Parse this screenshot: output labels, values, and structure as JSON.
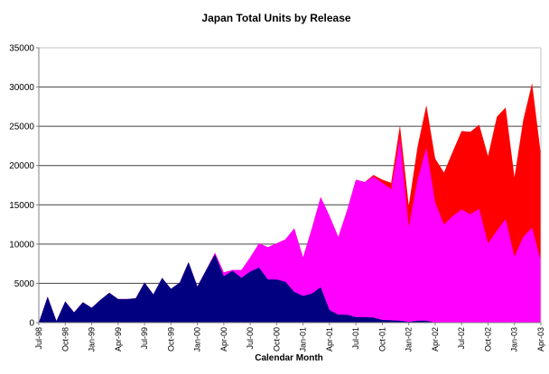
{
  "chart_data": {
    "type": "area",
    "stacked": true,
    "title": "Japan Total Units by Release",
    "xlabel": "Calendar Month",
    "ylabel": "",
    "ylim": [
      0,
      35000
    ],
    "yticks": [
      0,
      5000,
      10000,
      15000,
      20000,
      25000,
      30000,
      35000
    ],
    "grid": true,
    "legend": "none",
    "categories": [
      "Jul-98",
      "Aug-98",
      "Sep-98",
      "Oct-98",
      "Nov-98",
      "Dec-98",
      "Jan-99",
      "Feb-99",
      "Mar-99",
      "Apr-99",
      "May-99",
      "Jun-99",
      "Jul-99",
      "Aug-99",
      "Sep-99",
      "Oct-99",
      "Nov-99",
      "Dec-99",
      "Jan-00",
      "Feb-00",
      "Mar-00",
      "Apr-00",
      "May-00",
      "Jun-00",
      "Jul-00",
      "Aug-00",
      "Sep-00",
      "Oct-00",
      "Nov-00",
      "Dec-00",
      "Jan-01",
      "Feb-01",
      "Mar-01",
      "Apr-01",
      "May-01",
      "Jun-01",
      "Jul-01",
      "Aug-01",
      "Sep-01",
      "Oct-01",
      "Nov-01",
      "Dec-01",
      "Jan-02",
      "Feb-02",
      "Mar-02",
      "Apr-02",
      "May-02",
      "Jun-02",
      "Jul-02",
      "Aug-02",
      "Sep-02",
      "Oct-02",
      "Nov-02",
      "Dec-02",
      "Jan-03",
      "Feb-03",
      "Mar-03",
      "Apr-03"
    ],
    "tick_labels": [
      "Jul-98",
      "Oct-98",
      "Jan-99",
      "Apr-99",
      "Jul-99",
      "Oct-99",
      "Jan-00",
      "Apr-00",
      "Jul-00",
      "Oct-00",
      "Jan-01",
      "Apr-01",
      "Jul-01",
      "Oct-01",
      "Jan-02",
      "Apr-02",
      "Jul-02",
      "Oct-02",
      "Jan-03",
      "Apr-03"
    ],
    "series": [
      {
        "color": "#000080",
        "values": [
          0,
          3300,
          200,
          2700,
          1300,
          2600,
          1900,
          2900,
          3800,
          3000,
          3000,
          3100,
          5100,
          3600,
          5700,
          4300,
          5100,
          7700,
          4600,
          6700,
          8700,
          5900,
          6600,
          5700,
          6500,
          7000,
          5500,
          5500,
          5200,
          3900,
          3400,
          3700,
          4500,
          1600,
          1000,
          1000,
          700,
          700,
          650,
          350,
          300,
          250,
          100,
          250,
          250,
          0,
          0,
          0,
          0,
          0,
          0,
          0,
          0,
          0,
          0,
          0,
          0,
          0
        ]
      },
      {
        "color": "#FF00FF",
        "values": [
          0,
          0,
          0,
          0,
          0,
          0,
          0,
          0,
          0,
          0,
          0,
          0,
          0,
          0,
          0,
          0,
          0,
          0,
          0,
          0,
          200,
          500,
          100,
          1000,
          1800,
          3100,
          4100,
          4600,
          5400,
          8100,
          4900,
          8300,
          11500,
          12000,
          9900,
          13300,
          17500,
          17200,
          17950,
          17450,
          16700,
          23250,
          12100,
          17950,
          22050,
          15300,
          12500,
          13600,
          14400,
          13800,
          14500,
          10100,
          11700,
          13200,
          8400,
          10900,
          12100,
          7800
        ]
      },
      {
        "color": "#FF0000",
        "values": [
          0,
          0,
          0,
          0,
          0,
          0,
          0,
          0,
          0,
          0,
          0,
          0,
          0,
          0,
          0,
          0,
          0,
          0,
          0,
          0,
          0,
          0,
          0,
          0,
          0,
          0,
          0,
          0,
          0,
          0,
          0,
          0,
          0,
          0,
          0,
          0,
          0,
          0,
          200,
          400,
          800,
          1600,
          2700,
          4200,
          5400,
          5600,
          6600,
          8200,
          10000,
          10500,
          10700,
          11100,
          14500,
          14200,
          10100,
          14900,
          18400,
          13600
        ]
      }
    ]
  }
}
